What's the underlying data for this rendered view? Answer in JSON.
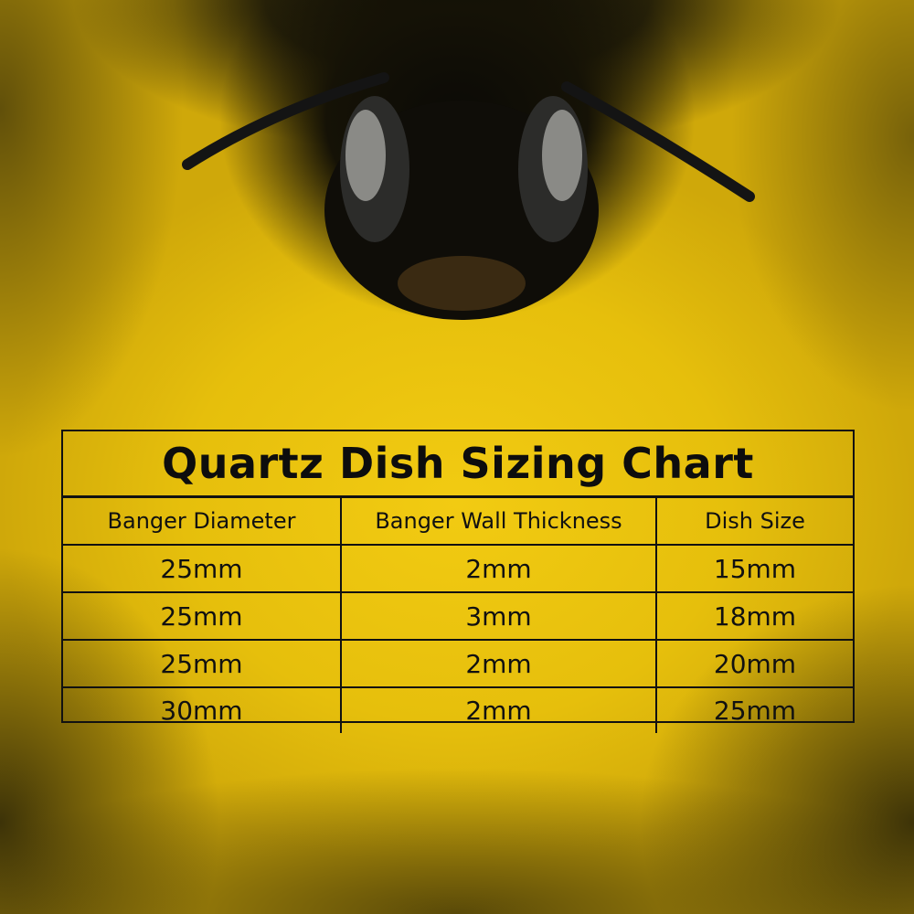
{
  "chart": {
    "title": "Quartz Dish Sizing Chart",
    "columns": [
      "Banger Diameter",
      "Banger Wall Thickness",
      "Dish Size"
    ],
    "rows": [
      [
        "25mm",
        "2mm",
        "15mm"
      ],
      [
        "25mm",
        "3mm",
        "18mm"
      ],
      [
        "25mm",
        "2mm",
        "20mm"
      ],
      [
        "30mm",
        "2mm",
        "25mm"
      ]
    ]
  },
  "colors": {
    "background": "#e9c10a",
    "border": "#111111",
    "text": "#111111"
  }
}
